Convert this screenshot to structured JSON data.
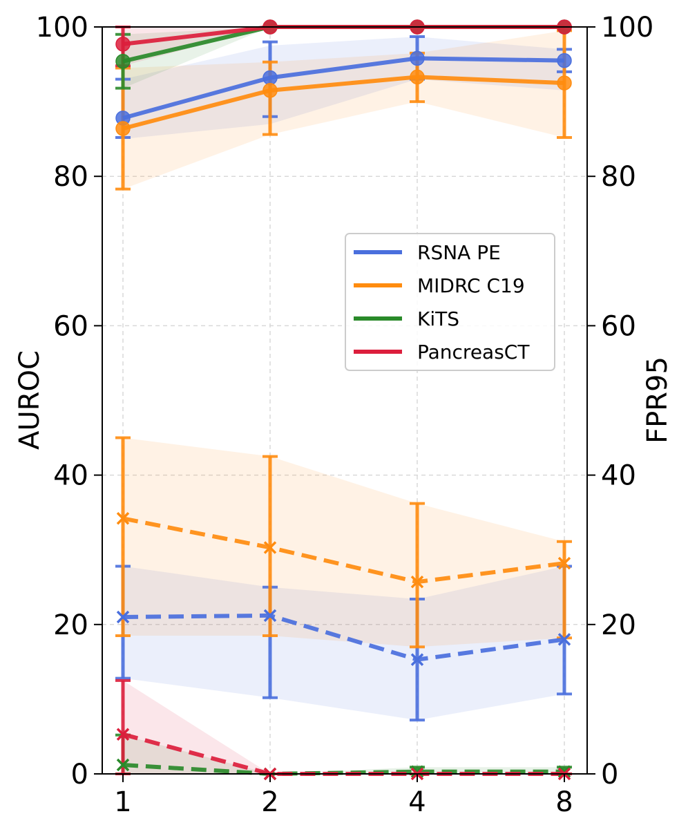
{
  "chart_data": {
    "type": "line",
    "x": [
      1,
      2,
      4,
      8
    ],
    "x_tick_labels": [
      "1",
      "2",
      "4",
      "8"
    ],
    "xlabel": "",
    "ylabel_left": "AUROC",
    "ylabel_right": "FPR95",
    "ylim": [
      0,
      100
    ],
    "y_ticks": [
      0,
      20,
      40,
      60,
      80,
      100
    ],
    "grid": true,
    "legend_position": "center-right",
    "series": [
      {
        "name": "RSNA PE",
        "color": "#4a6fdd",
        "auroc": {
          "mean": [
            87.8,
            93.2,
            95.8,
            95.5
          ],
          "err_low": [
            85.2,
            88.0,
            93.0,
            94.0
          ],
          "err_high": [
            93.0,
            98.0,
            98.7,
            97.0
          ],
          "band_low": [
            85.0,
            87.0,
            93.0,
            91.5
          ],
          "band_high": [
            93.0,
            97.5,
            98.7,
            97.0
          ]
        },
        "fpr95": {
          "mean": [
            21.0,
            21.2,
            15.3,
            18.0
          ],
          "err_low": [
            12.8,
            10.2,
            7.2,
            10.7
          ],
          "err_high": [
            27.8,
            25.0,
            23.4,
            27.8
          ],
          "band_low": [
            12.8,
            10.2,
            7.2,
            10.7
          ],
          "band_high": [
            27.8,
            25.0,
            23.4,
            27.8
          ]
        }
      },
      {
        "name": "MIDRC C19",
        "color": "#ff8c0f",
        "auroc": {
          "mean": [
            86.4,
            91.5,
            93.3,
            92.5
          ],
          "err_low": [
            78.3,
            85.6,
            90.0,
            85.2
          ],
          "err_high": [
            94.5,
            95.3,
            96.5,
            99.5
          ],
          "band_low": [
            78.3,
            85.6,
            90.0,
            85.2
          ],
          "band_high": [
            94.5,
            95.3,
            96.5,
            99.5
          ]
        },
        "fpr95": {
          "mean": [
            34.2,
            30.3,
            25.7,
            28.2
          ],
          "err_low": [
            18.5,
            18.5,
            17.0,
            18.2
          ],
          "err_high": [
            45.0,
            42.5,
            36.2,
            31.1
          ],
          "band_low": [
            18.5,
            18.5,
            17.0,
            18.2
          ],
          "band_high": [
            45.0,
            42.5,
            36.2,
            31.1
          ]
        }
      },
      {
        "name": "KiTS",
        "color": "#2a8a2a",
        "auroc": {
          "mean": [
            95.4,
            100.0,
            100.0,
            100.0
          ],
          "err_low": [
            91.8,
            100.0,
            100.0,
            100.0
          ],
          "err_high": [
            99.0,
            100.0,
            100.0,
            100.0
          ],
          "band_low": [
            91.8,
            100.0,
            100.0,
            100.0
          ],
          "band_high": [
            99.0,
            100.0,
            100.0,
            100.0
          ]
        },
        "fpr95": {
          "mean": [
            1.2,
            0.0,
            0.3,
            0.3
          ],
          "err_low": [
            0.0,
            0.0,
            0.0,
            0.0
          ],
          "err_high": [
            5.2,
            0.0,
            0.9,
            0.9
          ],
          "band_low": [
            0.0,
            0.0,
            0.0,
            0.0
          ],
          "band_high": [
            5.2,
            0.0,
            0.9,
            0.9
          ]
        }
      },
      {
        "name": "PancreasCT",
        "color": "#dc1e3c",
        "auroc": {
          "mean": [
            97.7,
            100.0,
            100.0,
            100.0
          ],
          "err_low": [
            94.8,
            100.0,
            100.0,
            100.0
          ],
          "err_high": [
            100.0,
            100.0,
            100.0,
            100.0
          ],
          "band_low": [
            94.8,
            100.0,
            100.0,
            100.0
          ],
          "band_high": [
            100.0,
            100.0,
            100.0,
            100.0
          ]
        },
        "fpr95": {
          "mean": [
            5.3,
            0.0,
            0.0,
            0.0
          ],
          "err_low": [
            0.0,
            0.0,
            0.0,
            0.0
          ],
          "err_high": [
            12.5,
            0.0,
            0.0,
            0.0
          ],
          "band_low": [
            0.0,
            0.0,
            0.0,
            0.0
          ],
          "band_high": [
            12.5,
            0.0,
            0.0,
            0.0
          ]
        }
      }
    ]
  }
}
